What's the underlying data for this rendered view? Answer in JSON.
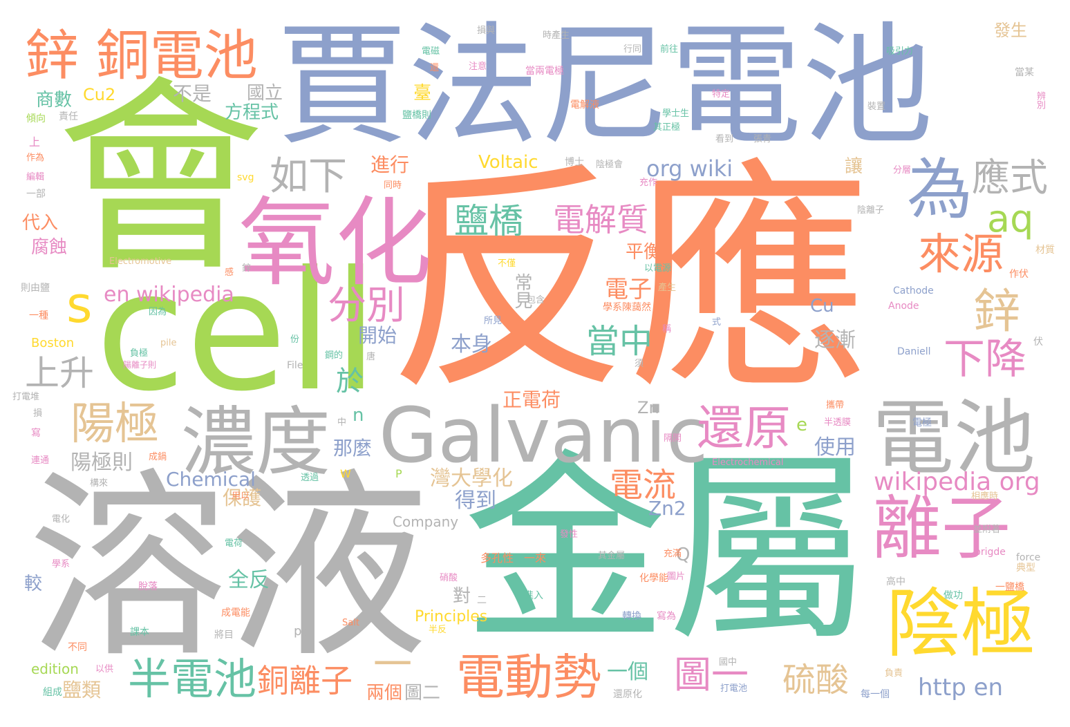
{
  "words": [
    {
      "text": "反應",
      "color": "orange"
    },
    {
      "text": "會",
      "color": "green"
    },
    {
      "text": "賈法尼電池",
      "color": "blue"
    },
    {
      "text": "金屬",
      "color": "teal"
    },
    {
      "text": "溶液",
      "color": "gray"
    },
    {
      "text": "cell",
      "color": "green"
    },
    {
      "text": "鋅 銅電池",
      "color": "orange"
    },
    {
      "text": "氧化",
      "color": "pink"
    },
    {
      "text": "Galvanic",
      "color": "gray"
    },
    {
      "text": "電池",
      "color": "gray"
    },
    {
      "text": "濃度",
      "color": "gray"
    },
    {
      "text": "陰極",
      "color": "yellow"
    },
    {
      "text": "離子",
      "color": "pink"
    },
    {
      "text": "為",
      "color": "blue"
    },
    {
      "text": "s",
      "color": "yellow"
    },
    {
      "text": "還原",
      "color": "pink"
    },
    {
      "text": "電動勢",
      "color": "orange"
    },
    {
      "text": "來源",
      "color": "orange"
    },
    {
      "text": "陽極",
      "color": "tan"
    },
    {
      "text": "半電池",
      "color": "teal"
    },
    {
      "text": "鋅",
      "color": "tan"
    },
    {
      "text": "下降",
      "color": "pink"
    },
    {
      "text": "應式",
      "color": "gray"
    },
    {
      "text": "分別",
      "color": "pink"
    },
    {
      "text": "如下",
      "color": "gray"
    },
    {
      "text": "aq",
      "color": "green"
    },
    {
      "text": "電解質",
      "color": "pink"
    },
    {
      "text": "鹽橋",
      "color": "teal"
    },
    {
      "text": "當中",
      "color": "teal"
    },
    {
      "text": "上升",
      "color": "gray"
    },
    {
      "text": "圖一",
      "color": "pink"
    },
    {
      "text": "銅離子",
      "color": "orange"
    },
    {
      "text": "硫酸",
      "color": "tan"
    },
    {
      "text": "電流",
      "color": "orange"
    },
    {
      "text": "wikipedia org",
      "color": "pink"
    },
    {
      "text": "en wikipedia",
      "color": "pink"
    },
    {
      "text": "org wiki",
      "color": "blue"
    },
    {
      "text": "http en",
      "color": "blue"
    },
    {
      "text": "Chemical",
      "color": "blue"
    },
    {
      "text": "Voltaic",
      "color": "yellow"
    },
    {
      "text": "一",
      "color": "tan"
    },
    {
      "text": "於",
      "color": "teal"
    },
    {
      "text": "電子",
      "color": "orange"
    },
    {
      "text": "正電荷",
      "color": "orange"
    },
    {
      "text": "那麼",
      "color": "blue"
    },
    {
      "text": "陽極則",
      "color": "gray"
    },
    {
      "text": "灣大學化",
      "color": "tan"
    },
    {
      "text": "得到",
      "color": "blue"
    },
    {
      "text": "保護",
      "color": "tan"
    },
    {
      "text": "全反",
      "color": "teal"
    },
    {
      "text": "鹽類",
      "color": "tan"
    },
    {
      "text": "兩個",
      "color": "orange"
    },
    {
      "text": "圖二",
      "color": "gray"
    },
    {
      "text": "一個",
      "color": "teal"
    },
    {
      "text": "使用",
      "color": "blue"
    },
    {
      "text": "逐漸",
      "color": "gray"
    },
    {
      "text": "Cu",
      "color": "blue"
    },
    {
      "text": "Zn2",
      "color": "blue"
    },
    {
      "text": "Zn",
      "color": "gray"
    },
    {
      "text": "Cu2",
      "color": "yellow"
    },
    {
      "text": "本身",
      "color": "blue"
    },
    {
      "text": "開始",
      "color": "blue"
    },
    {
      "text": "常見",
      "color": "gray"
    },
    {
      "text": "平衡",
      "color": "orange"
    },
    {
      "text": "進行",
      "color": "orange"
    },
    {
      "text": "方程式",
      "color": "teal"
    },
    {
      "text": "國立",
      "color": "gray"
    },
    {
      "text": "不是",
      "color": "gray"
    },
    {
      "text": "商數",
      "color": "teal"
    },
    {
      "text": "代入",
      "color": "orange"
    },
    {
      "text": "腐蝕",
      "color": "pink"
    },
    {
      "text": "讓",
      "color": "tan"
    },
    {
      "text": "對",
      "color": "gray"
    },
    {
      "text": "發生",
      "color": "tan"
    },
    {
      "text": "較",
      "color": "blue"
    },
    {
      "text": "e",
      "color": "green"
    },
    {
      "text": "n",
      "color": "teal"
    },
    {
      "text": "Q",
      "color": "gray"
    },
    {
      "text": "Principles",
      "color": "yellow"
    },
    {
      "text": "Company",
      "color": "gray"
    },
    {
      "text": "edition",
      "color": "green"
    },
    {
      "text": "Boston",
      "color": "yellow"
    },
    {
      "text": "Electromotive",
      "color": "tan"
    },
    {
      "text": "Electrochemical",
      "color": "pink"
    },
    {
      "text": "Cathode",
      "color": "blue"
    },
    {
      "text": "Anode",
      "color": "pink"
    },
    {
      "text": "Daniell",
      "color": "blue"
    },
    {
      "text": "File",
      "color": "gray"
    },
    {
      "text": "pile",
      "color": "tan"
    },
    {
      "text": "svg",
      "color": "yellow"
    },
    {
      "text": "Salt",
      "color": "orange"
    },
    {
      "text": "brigde",
      "color": "pink"
    },
    {
      "text": "force",
      "color": "gray"
    },
    {
      "text": "pp",
      "color": "gray"
    },
    {
      "text": "W",
      "color": "yellow"
    },
    {
      "text": "P",
      "color": "green"
    },
    {
      "text": "多孔性",
      "color": "orange"
    },
    {
      "text": "一來",
      "color": "orange"
    },
    {
      "text": "一鹽橋",
      "color": "orange"
    },
    {
      "text": "電解液",
      "color": "orange"
    },
    {
      "text": "當兩電極",
      "color": "pink"
    },
    {
      "text": "電極",
      "color": "blue"
    },
    {
      "text": "負責",
      "color": "tan"
    },
    {
      "text": "一部",
      "color": "gray"
    },
    {
      "text": "編輯",
      "color": "pink"
    },
    {
      "text": "作為",
      "color": "orange"
    },
    {
      "text": "傾向",
      "color": "green"
    },
    {
      "text": "責任",
      "color": "gray"
    },
    {
      "text": "上",
      "color": "pink"
    },
    {
      "text": "一種",
      "color": "orange"
    },
    {
      "text": "則由鹽",
      "color": "gray"
    },
    {
      "text": "打電堆",
      "color": "gray"
    },
    {
      "text": "寫",
      "color": "pink"
    },
    {
      "text": "連通",
      "color": "pink"
    },
    {
      "text": "構來",
      "color": "gray"
    },
    {
      "text": "電化",
      "color": "gray"
    },
    {
      "text": "學系",
      "color": "pink"
    },
    {
      "text": "脫落",
      "color": "pink"
    },
    {
      "text": "課本",
      "color": "teal"
    },
    {
      "text": "不同",
      "color": "orange"
    },
    {
      "text": "組成",
      "color": "teal"
    },
    {
      "text": "以供",
      "color": "pink"
    },
    {
      "text": "打電池",
      "color": "blue"
    },
    {
      "text": "還原化",
      "color": "gray"
    },
    {
      "text": "每一個",
      "color": "blue"
    },
    {
      "text": "國中",
      "color": "gray"
    },
    {
      "text": "成電能",
      "color": "orange"
    },
    {
      "text": "將目",
      "color": "gray"
    },
    {
      "text": "轉換",
      "color": "blue"
    },
    {
      "text": "寫為",
      "color": "pink"
    },
    {
      "text": "化學能",
      "color": "orange"
    },
    {
      "text": "進入",
      "color": "teal"
    },
    {
      "text": "其金屬",
      "color": "gray"
    },
    {
      "text": "圖片",
      "color": "pink"
    },
    {
      "text": "做功",
      "color": "teal"
    },
    {
      "text": "高中",
      "color": "gray"
    },
    {
      "text": "典型",
      "color": "tan"
    },
    {
      "text": "相應時",
      "color": "tan"
    },
    {
      "text": "並附著",
      "color": "gray"
    },
    {
      "text": "半透膜",
      "color": "pink"
    },
    {
      "text": "攜帶",
      "color": "orange"
    },
    {
      "text": "伏",
      "color": "gray"
    },
    {
      "text": "作伏",
      "color": "orange"
    },
    {
      "text": "材質",
      "color": "tan"
    },
    {
      "text": "陰離子",
      "color": "gray"
    },
    {
      "text": "分層",
      "color": "pink"
    },
    {
      "text": "看到",
      "color": "gray"
    },
    {
      "text": "張青",
      "color": "gray"
    },
    {
      "text": "學士生",
      "color": "teal"
    },
    {
      "text": "其正極",
      "color": "teal"
    },
    {
      "text": "特定",
      "color": "pink"
    },
    {
      "text": "裝置",
      "color": "gray"
    },
    {
      "text": "辨別",
      "color": "pink"
    },
    {
      "text": "當某",
      "color": "gray"
    },
    {
      "text": "吸引力",
      "color": "teal"
    },
    {
      "text": "時產生",
      "color": "gray"
    },
    {
      "text": "損與",
      "color": "gray"
    },
    {
      "text": "電磁",
      "color": "teal"
    },
    {
      "text": "行同",
      "color": "gray"
    },
    {
      "text": "前往",
      "color": "teal"
    },
    {
      "text": "注意",
      "color": "pink"
    },
    {
      "text": "鹽橋則",
      "color": "teal"
    },
    {
      "text": "充作",
      "color": "pink"
    },
    {
      "text": "同時",
      "color": "orange"
    },
    {
      "text": "陰極會",
      "color": "gray"
    },
    {
      "text": "博士",
      "color": "gray"
    },
    {
      "text": "以電源",
      "color": "teal"
    },
    {
      "text": "不僅",
      "color": "yellow"
    },
    {
      "text": "產生",
      "color": "tan"
    },
    {
      "text": "包含",
      "color": "gray"
    },
    {
      "text": "學系陳藹然",
      "color": "orange"
    },
    {
      "text": "所見",
      "color": "blue"
    },
    {
      "text": "式",
      "color": "blue"
    },
    {
      "text": "稱",
      "color": "pink"
    },
    {
      "text": "份",
      "color": "teal"
    },
    {
      "text": "負極",
      "color": "teal"
    },
    {
      "text": "陽離子則",
      "color": "pink"
    },
    {
      "text": "唐",
      "color": "gray"
    },
    {
      "text": "鋼的",
      "color": "teal"
    },
    {
      "text": "感",
      "color": "orange"
    },
    {
      "text": "因為",
      "color": "teal"
    },
    {
      "text": "用以",
      "color": "orange"
    },
    {
      "text": "透過",
      "color": "teal"
    },
    {
      "text": "成鍋",
      "color": "orange"
    },
    {
      "text": "隔開",
      "color": "pink"
    },
    {
      "text": "電荷",
      "color": "teal"
    },
    {
      "text": "充滿",
      "color": "orange"
    },
    {
      "text": "發性",
      "color": "pink"
    },
    {
      "text": "硝酸",
      "color": "pink"
    },
    {
      "text": "半反",
      "color": "yellow"
    },
    {
      "text": "須",
      "color": "gray"
    },
    {
      "text": "臺",
      "color": "yellow"
    },
    {
      "text": "還",
      "color": "orange"
    },
    {
      "text": "中",
      "color": "gray"
    },
    {
      "text": "二",
      "color": "gray"
    },
    {
      "text": "鋅",
      "color": "gray"
    },
    {
      "text": "損",
      "color": "gray"
    }
  ]
}
